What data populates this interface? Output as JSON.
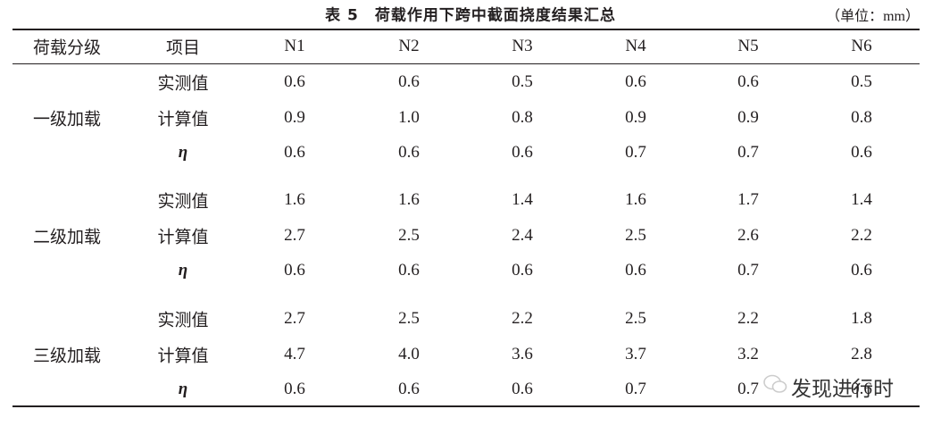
{
  "header": {
    "title": "表 5　荷载作用下跨中截面挠度结果汇总",
    "unit": "（单位：mm）"
  },
  "table": {
    "columns": [
      "荷载分级",
      "项目",
      "N1",
      "N2",
      "N3",
      "N4",
      "N5",
      "N6"
    ],
    "groups": [
      {
        "label": "一级加载",
        "rows": [
          {
            "item": "实测值",
            "values": [
              "0.6",
              "0.6",
              "0.5",
              "0.6",
              "0.6",
              "0.5"
            ]
          },
          {
            "item": "计算值",
            "values": [
              "0.9",
              "1.0",
              "0.8",
              "0.9",
              "0.9",
              "0.8"
            ]
          },
          {
            "item": "η",
            "values": [
              "0.6",
              "0.6",
              "0.6",
              "0.7",
              "0.7",
              "0.6"
            ]
          }
        ]
      },
      {
        "label": "二级加载",
        "rows": [
          {
            "item": "实测值",
            "values": [
              "1.6",
              "1.6",
              "1.4",
              "1.6",
              "1.7",
              "1.4"
            ]
          },
          {
            "item": "计算值",
            "values": [
              "2.7",
              "2.5",
              "2.4",
              "2.5",
              "2.6",
              "2.2"
            ]
          },
          {
            "item": "η",
            "values": [
              "0.6",
              "0.6",
              "0.6",
              "0.6",
              "0.7",
              "0.6"
            ]
          }
        ]
      },
      {
        "label": "三级加载",
        "rows": [
          {
            "item": "实测值",
            "values": [
              "2.7",
              "2.5",
              "2.2",
              "2.5",
              "2.2",
              "1.8"
            ]
          },
          {
            "item": "计算值",
            "values": [
              "4.7",
              "4.0",
              "3.6",
              "3.7",
              "3.2",
              "2.8"
            ]
          },
          {
            "item": "η",
            "values": [
              "0.6",
              "0.6",
              "0.6",
              "0.7",
              "0.7",
              "0.6"
            ]
          }
        ]
      }
    ]
  },
  "watermark": "发现进行时"
}
